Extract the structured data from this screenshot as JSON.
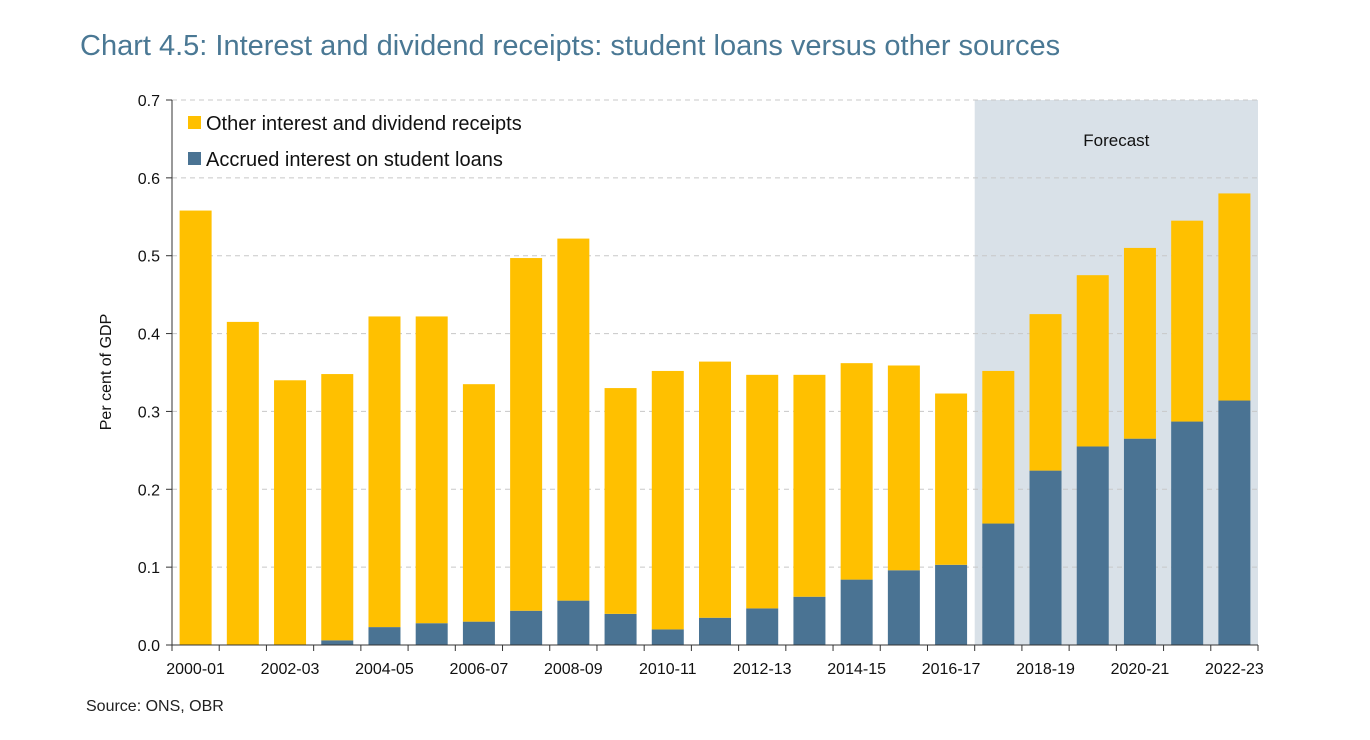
{
  "title": "Chart 4.5: Interest and dividend receipts: student loans versus other sources",
  "source": "Source: ONS, OBR",
  "colors": {
    "other": "#ffc000",
    "student": "#4a7393",
    "forecast_bg": "#d9e1e8",
    "grid": "#c8c8c8"
  },
  "chart_data": {
    "type": "bar",
    "stacked": true,
    "title": "Chart 4.5: Interest and dividend receipts: student loans versus other sources",
    "xlabel": "",
    "ylabel": "Per cent of GDP",
    "ylim": [
      0,
      0.7
    ],
    "yticks": [
      "0.0",
      "0.1",
      "0.2",
      "0.3",
      "0.4",
      "0.5",
      "0.6",
      "0.7"
    ],
    "grid": true,
    "legend_position": "top-left",
    "forecast_label": "Forecast",
    "forecast_start": "2017-18",
    "categories": [
      "2000-01",
      "2001-02",
      "2002-03",
      "2003-04",
      "2004-05",
      "2005-06",
      "2006-07",
      "2007-08",
      "2008-09",
      "2009-10",
      "2010-11",
      "2011-12",
      "2012-13",
      "2013-14",
      "2014-15",
      "2015-16",
      "2016-17",
      "2017-18",
      "2018-19",
      "2019-20",
      "2020-21",
      "2021-22",
      "2022-23"
    ],
    "xtick_labels": [
      "2000-01",
      "2002-03",
      "2004-05",
      "2006-07",
      "2008-09",
      "2010-11",
      "2012-13",
      "2014-15",
      "2016-17",
      "2018-19",
      "2020-21",
      "2022-23"
    ],
    "series": [
      {
        "name": "Accrued interest on student loans",
        "values": [
          0,
          0,
          0,
          0.006,
          0.023,
          0.028,
          0.03,
          0.044,
          0.057,
          0.04,
          0.02,
          0.035,
          0.047,
          0.062,
          0.084,
          0.096,
          0.103,
          0.156,
          0.224,
          0.255,
          0.265,
          0.287,
          0.314
        ]
      },
      {
        "name": "Other interest and dividend receipts",
        "values": [
          0.558,
          0.415,
          0.34,
          0.342,
          0.399,
          0.394,
          0.305,
          0.453,
          0.465,
          0.29,
          0.332,
          0.329,
          0.3,
          0.285,
          0.278,
          0.263,
          0.22,
          0.196,
          0.201,
          0.22,
          0.245,
          0.258,
          0.266
        ]
      }
    ],
    "legend": [
      "Other interest and dividend receipts",
      "Accrued interest on student loans"
    ]
  }
}
